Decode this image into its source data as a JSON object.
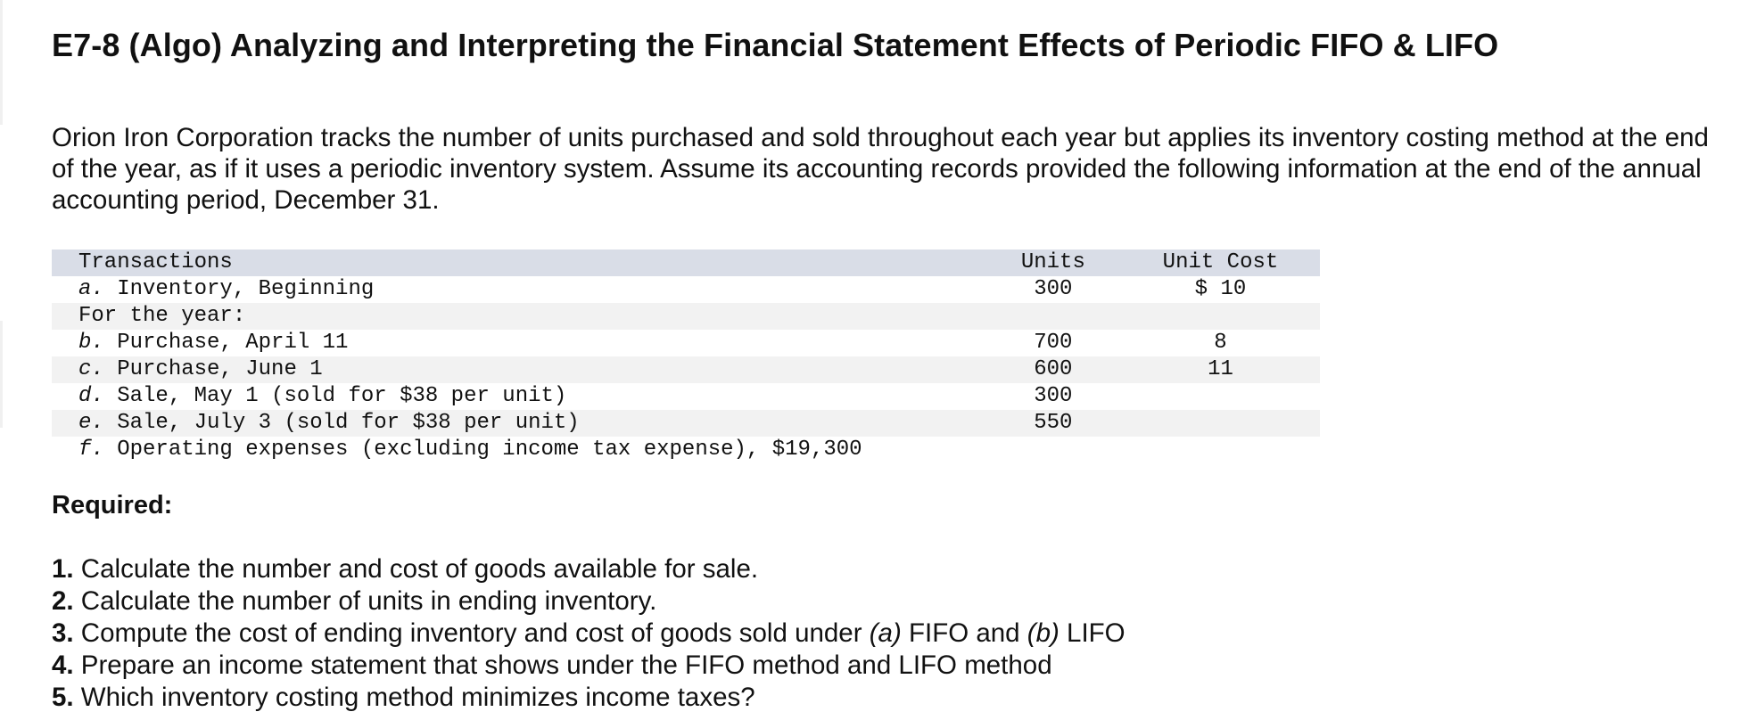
{
  "title": "E7-8 (Algo) Analyzing and Interpreting the Financial Statement Effects of Periodic FIFO & LIFO",
  "intro": "Orion Iron Corporation tracks the number of units purchased and sold throughout each year but applies its inventory costing method at the end of the year, as if it uses a periodic inventory system. Assume its accounting records provided the following information at the end of the annual accounting period, December 31.",
  "table": {
    "headers": {
      "transactions": "Transactions",
      "units": "Units",
      "unit_cost": "Unit Cost"
    },
    "rows": [
      {
        "letter": "a.",
        "description": " Inventory, Beginning",
        "units": "300",
        "unit_cost": "$ 10"
      },
      {
        "letter": "",
        "description": "For the year:",
        "units": "",
        "unit_cost": ""
      },
      {
        "letter": "b.",
        "description": " Purchase, April 11",
        "units": "700",
        "unit_cost": "8"
      },
      {
        "letter": "c.",
        "description": " Purchase, June 1",
        "units": "600",
        "unit_cost": "11"
      },
      {
        "letter": "d.",
        "description": " Sale, May 1 (sold for $38 per unit)",
        "units": "300",
        "unit_cost": ""
      },
      {
        "letter": "e.",
        "description": " Sale, July 3 (sold for $38 per unit)",
        "units": "550",
        "unit_cost": ""
      },
      {
        "letter": "f.",
        "description": " Operating expenses (excluding income tax expense), $19,300",
        "units": "",
        "unit_cost": ""
      }
    ]
  },
  "required": {
    "heading": "Required:",
    "items": [
      {
        "num": "1.",
        "text": " Calculate the number and cost of goods available for sale."
      },
      {
        "num": "2.",
        "text": " Calculate the number of units in ending inventory."
      },
      {
        "num": "3.",
        "text_a": " Compute the cost of ending inventory and cost of goods sold under ",
        "em_a": "(a)",
        "text_b": " FIFO and ",
        "em_b": "(b)",
        "text_c": " LIFO"
      },
      {
        "num": "4.",
        "text": " Prepare an income statement that shows under the FIFO method and LIFO method"
      },
      {
        "num": "5.",
        "text": " Which inventory costing method minimizes income taxes?"
      }
    ]
  }
}
